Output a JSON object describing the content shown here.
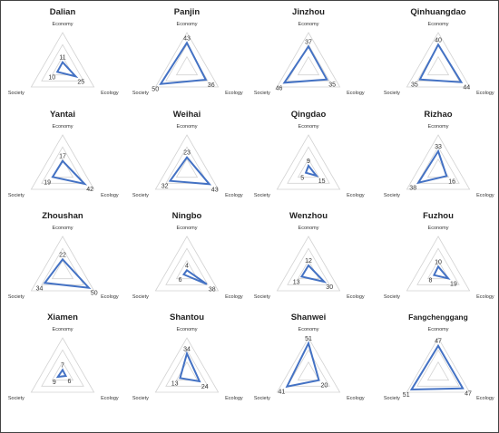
{
  "figure": {
    "axes": [
      "Economy",
      "Ecology",
      "Society"
    ],
    "colors": {
      "series": "#4472c4",
      "grid": "#d3d3d3",
      "text": "#333333"
    }
  },
  "chart_data": [
    {
      "type": "radar",
      "title": "Dalian",
      "axes": [
        "Economy",
        "Ecology",
        "Society"
      ],
      "values": [
        11,
        25,
        10
      ],
      "rmax": 60
    },
    {
      "type": "radar",
      "title": "Panjin",
      "axes": [
        "Economy",
        "Ecology",
        "Society"
      ],
      "values": [
        43,
        36,
        50
      ],
      "rmax": 60
    },
    {
      "type": "radar",
      "title": "Jinzhou",
      "axes": [
        "Economy",
        "Ecology",
        "Society"
      ],
      "values": [
        37,
        35,
        46
      ],
      "rmax": 60
    },
    {
      "type": "radar",
      "title": "Qinhuangdao",
      "axes": [
        "Economy",
        "Ecology",
        "Society"
      ],
      "values": [
        40,
        44,
        35
      ],
      "rmax": 60
    },
    {
      "type": "radar",
      "title": "Yantai",
      "axes": [
        "Economy",
        "Ecology",
        "Society"
      ],
      "values": [
        17,
        42,
        19
      ],
      "rmax": 60
    },
    {
      "type": "radar",
      "title": "Weihai",
      "axes": [
        "Economy",
        "Ecology",
        "Society"
      ],
      "values": [
        23,
        43,
        32
      ],
      "rmax": 60
    },
    {
      "type": "radar",
      "title": "Qingdao",
      "axes": [
        "Economy",
        "Ecology",
        "Society"
      ],
      "values": [
        9,
        15,
        5
      ],
      "rmax": 60
    },
    {
      "type": "radar",
      "title": "Rizhao",
      "axes": [
        "Economy",
        "Ecology",
        "Society"
      ],
      "values": [
        33,
        16,
        38
      ],
      "rmax": 60
    },
    {
      "type": "radar",
      "title": "Zhoushan",
      "axes": [
        "Economy",
        "Ecology",
        "Society"
      ],
      "values": [
        22,
        50,
        34
      ],
      "rmax": 60
    },
    {
      "type": "radar",
      "title": "Ningbo",
      "axes": [
        "Economy",
        "Ecology",
        "Society"
      ],
      "values": [
        4,
        38,
        6
      ],
      "rmax": 60
    },
    {
      "type": "radar",
      "title": "Wenzhou",
      "axes": [
        "Economy",
        "Ecology",
        "Society"
      ],
      "values": [
        12,
        30,
        13
      ],
      "rmax": 60
    },
    {
      "type": "radar",
      "title": "Fuzhou",
      "axes": [
        "Economy",
        "Ecology",
        "Society"
      ],
      "values": [
        10,
        19,
        8
      ],
      "rmax": 60
    },
    {
      "type": "radar",
      "title": "Xiamen",
      "axes": [
        "Economy",
        "Ecology",
        "Society"
      ],
      "values": [
        7,
        6,
        9
      ],
      "rmax": 60
    },
    {
      "type": "radar",
      "title": "Shantou",
      "axes": [
        "Economy",
        "Ecology",
        "Society"
      ],
      "values": [
        34,
        24,
        13
      ],
      "rmax": 60
    },
    {
      "type": "radar",
      "title": "Shanwei",
      "axes": [
        "Economy",
        "Ecology",
        "Society"
      ],
      "values": [
        51,
        20,
        41
      ],
      "rmax": 60
    },
    {
      "type": "radar",
      "title": "Fangchenggang",
      "axes": [
        "Economy",
        "Ecology",
        "Society"
      ],
      "values": [
        47,
        47,
        51
      ],
      "rmax": 60
    }
  ]
}
